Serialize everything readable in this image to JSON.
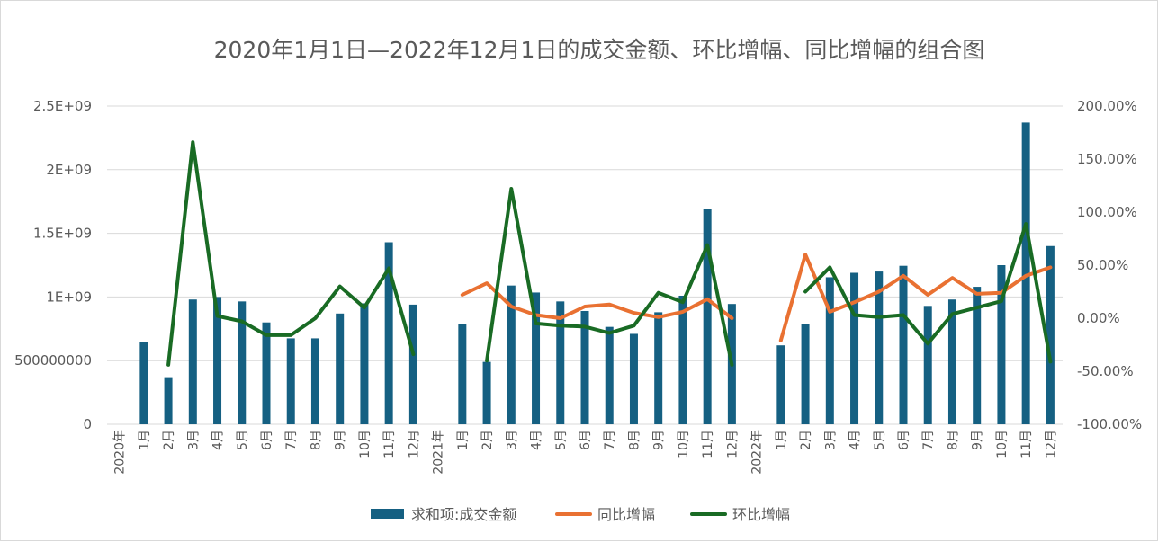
{
  "chart_data": {
    "type": "bar+line",
    "title": "2020年1月1日—2022年12月1日的成交金额、环比增幅、同比增幅的组合图",
    "years": [
      "2020年",
      "2021年",
      "2022年"
    ],
    "months": [
      "1月",
      "2月",
      "3月",
      "4月",
      "5月",
      "6月",
      "7月",
      "8月",
      "9月",
      "10月",
      "11月",
      "12月"
    ],
    "y_left": {
      "min": 0,
      "max": 2500000000,
      "ticks": [
        "0",
        "500000000",
        "1E+09",
        "1.5E+09",
        "2E+09",
        "2.5E+09"
      ],
      "tick_values": [
        0,
        500000000,
        1000000000,
        1500000000,
        2000000000,
        2500000000
      ]
    },
    "y_right": {
      "min": -1.0,
      "max": 2.0,
      "ticks": [
        "-100.00%",
        "-50.00%",
        "0.00%",
        "50.00%",
        "100.00%",
        "150.00%",
        "200.00%"
      ],
      "tick_values": [
        -1.0,
        -0.5,
        0,
        0.5,
        1.0,
        1.5,
        2.0
      ]
    },
    "grid": true,
    "legend_position": "bottom",
    "series": [
      {
        "name": "求和项:成交金额",
        "kind": "bar",
        "axis": "left",
        "color": "#156082",
        "values": [
          [
            645000000,
            370000000,
            980000000,
            1000000000,
            965000000,
            800000000,
            675000000,
            675000000,
            870000000,
            950000000,
            1430000000,
            940000000
          ],
          [
            790000000,
            490000000,
            1090000000,
            1035000000,
            965000000,
            890000000,
            765000000,
            710000000,
            880000000,
            1010000000,
            1690000000,
            945000000
          ],
          [
            620000000,
            790000000,
            1155000000,
            1190000000,
            1200000000,
            1245000000,
            930000000,
            980000000,
            1080000000,
            1250000000,
            2370000000,
            1400000000
          ]
        ]
      },
      {
        "name": "同比增幅",
        "kind": "line",
        "axis": "right",
        "color": "#E97132",
        "values": [
          [
            null,
            null,
            null,
            null,
            null,
            null,
            null,
            null,
            null,
            null,
            null,
            null
          ],
          [
            0.22,
            0.33,
            0.11,
            0.03,
            0.0,
            0.11,
            0.13,
            0.05,
            0.01,
            0.06,
            0.18,
            0.0
          ],
          [
            -0.21,
            0.6,
            0.06,
            0.15,
            0.25,
            0.4,
            0.22,
            0.38,
            0.23,
            0.24,
            0.4,
            0.48
          ]
        ]
      },
      {
        "name": "环比增幅",
        "kind": "line",
        "axis": "right",
        "color": "#196B24",
        "values": [
          [
            null,
            -0.44,
            1.66,
            0.02,
            -0.03,
            -0.16,
            -0.16,
            0.0,
            0.3,
            0.1,
            0.47,
            -0.34
          ],
          [
            null,
            -0.4,
            1.22,
            -0.05,
            -0.07,
            -0.08,
            -0.14,
            -0.07,
            0.24,
            0.15,
            0.69,
            -0.44
          ],
          [
            null,
            0.25,
            0.48,
            0.03,
            0.01,
            0.03,
            -0.24,
            0.04,
            0.1,
            0.16,
            0.89,
            -0.41
          ]
        ]
      }
    ]
  }
}
